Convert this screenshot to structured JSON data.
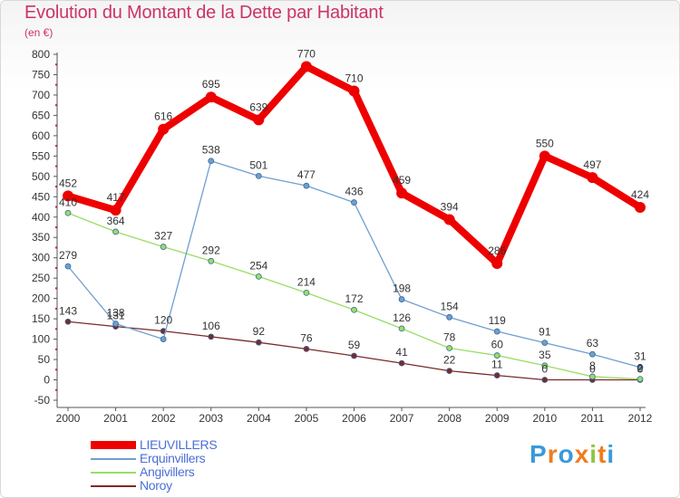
{
  "title": "Evolution du Montant de la Dette par Habitant",
  "subtitle": "(en €)",
  "logo": {
    "text": "Proxiti",
    "letters": [
      "P",
      "r",
      "o",
      "x",
      "i",
      "t",
      "i"
    ],
    "colors": [
      "#3a9ad9",
      "#f07c1e",
      "#3a9ad9",
      "#f07c1e",
      "#8cc63f",
      "#f07c1e",
      "#3a9ad9"
    ]
  },
  "chart_data": {
    "type": "line",
    "title": "Evolution du Montant de la Dette par Habitant",
    "subtitle": "(en €)",
    "xlabel": "",
    "ylabel": "",
    "x": [
      "2000",
      "2001",
      "2002",
      "2003",
      "2004",
      "2005",
      "2006",
      "2007",
      "2008",
      "2009",
      "2010",
      "2011",
      "2012"
    ],
    "ylim": [
      -50,
      800
    ],
    "yticks": [
      -50,
      0,
      50,
      100,
      150,
      200,
      250,
      300,
      350,
      400,
      450,
      500,
      550,
      600,
      650,
      700,
      750,
      800
    ],
    "grid": false,
    "legend_position": "bottom-left",
    "series": [
      {
        "name": "LIEUVILLERS",
        "color": "#ee0000",
        "values": [
          452,
          417,
          616,
          695,
          639,
          770,
          710,
          459,
          394,
          286,
          550,
          497,
          424
        ],
        "labels": [
          "452",
          "417",
          "616",
          "695",
          "639",
          "770",
          "710",
          "459",
          "394",
          "286",
          "550",
          "497",
          "424"
        ]
      },
      {
        "name": "Erquinvillers",
        "color": "#6f9fcf",
        "values": [
          279,
          138,
          100,
          538,
          501,
          477,
          436,
          198,
          154,
          119,
          91,
          63,
          31
        ],
        "labels": [
          "279",
          "138",
          "",
          "538",
          "501",
          "477",
          "436",
          "198",
          "154",
          "119",
          "91",
          "63",
          "31"
        ]
      },
      {
        "name": "Angivillers",
        "color": "#99dd66",
        "values": [
          410,
          364,
          327,
          292,
          254,
          214,
          172,
          126,
          78,
          60,
          35,
          8,
          2
        ],
        "labels": [
          "410",
          "364",
          "327",
          "292",
          "254",
          "214",
          "172",
          "126",
          "78",
          "60",
          "35",
          "8",
          "2"
        ]
      },
      {
        "name": "Noroy",
        "color": "#7a2a2a",
        "values": [
          143,
          131,
          120,
          106,
          92,
          76,
          59,
          41,
          22,
          11,
          0,
          0,
          0
        ],
        "labels": [
          "143",
          "131",
          "120",
          "106",
          "92",
          "76",
          "59",
          "41",
          "22",
          "11",
          "0",
          "0",
          "0"
        ]
      }
    ]
  }
}
